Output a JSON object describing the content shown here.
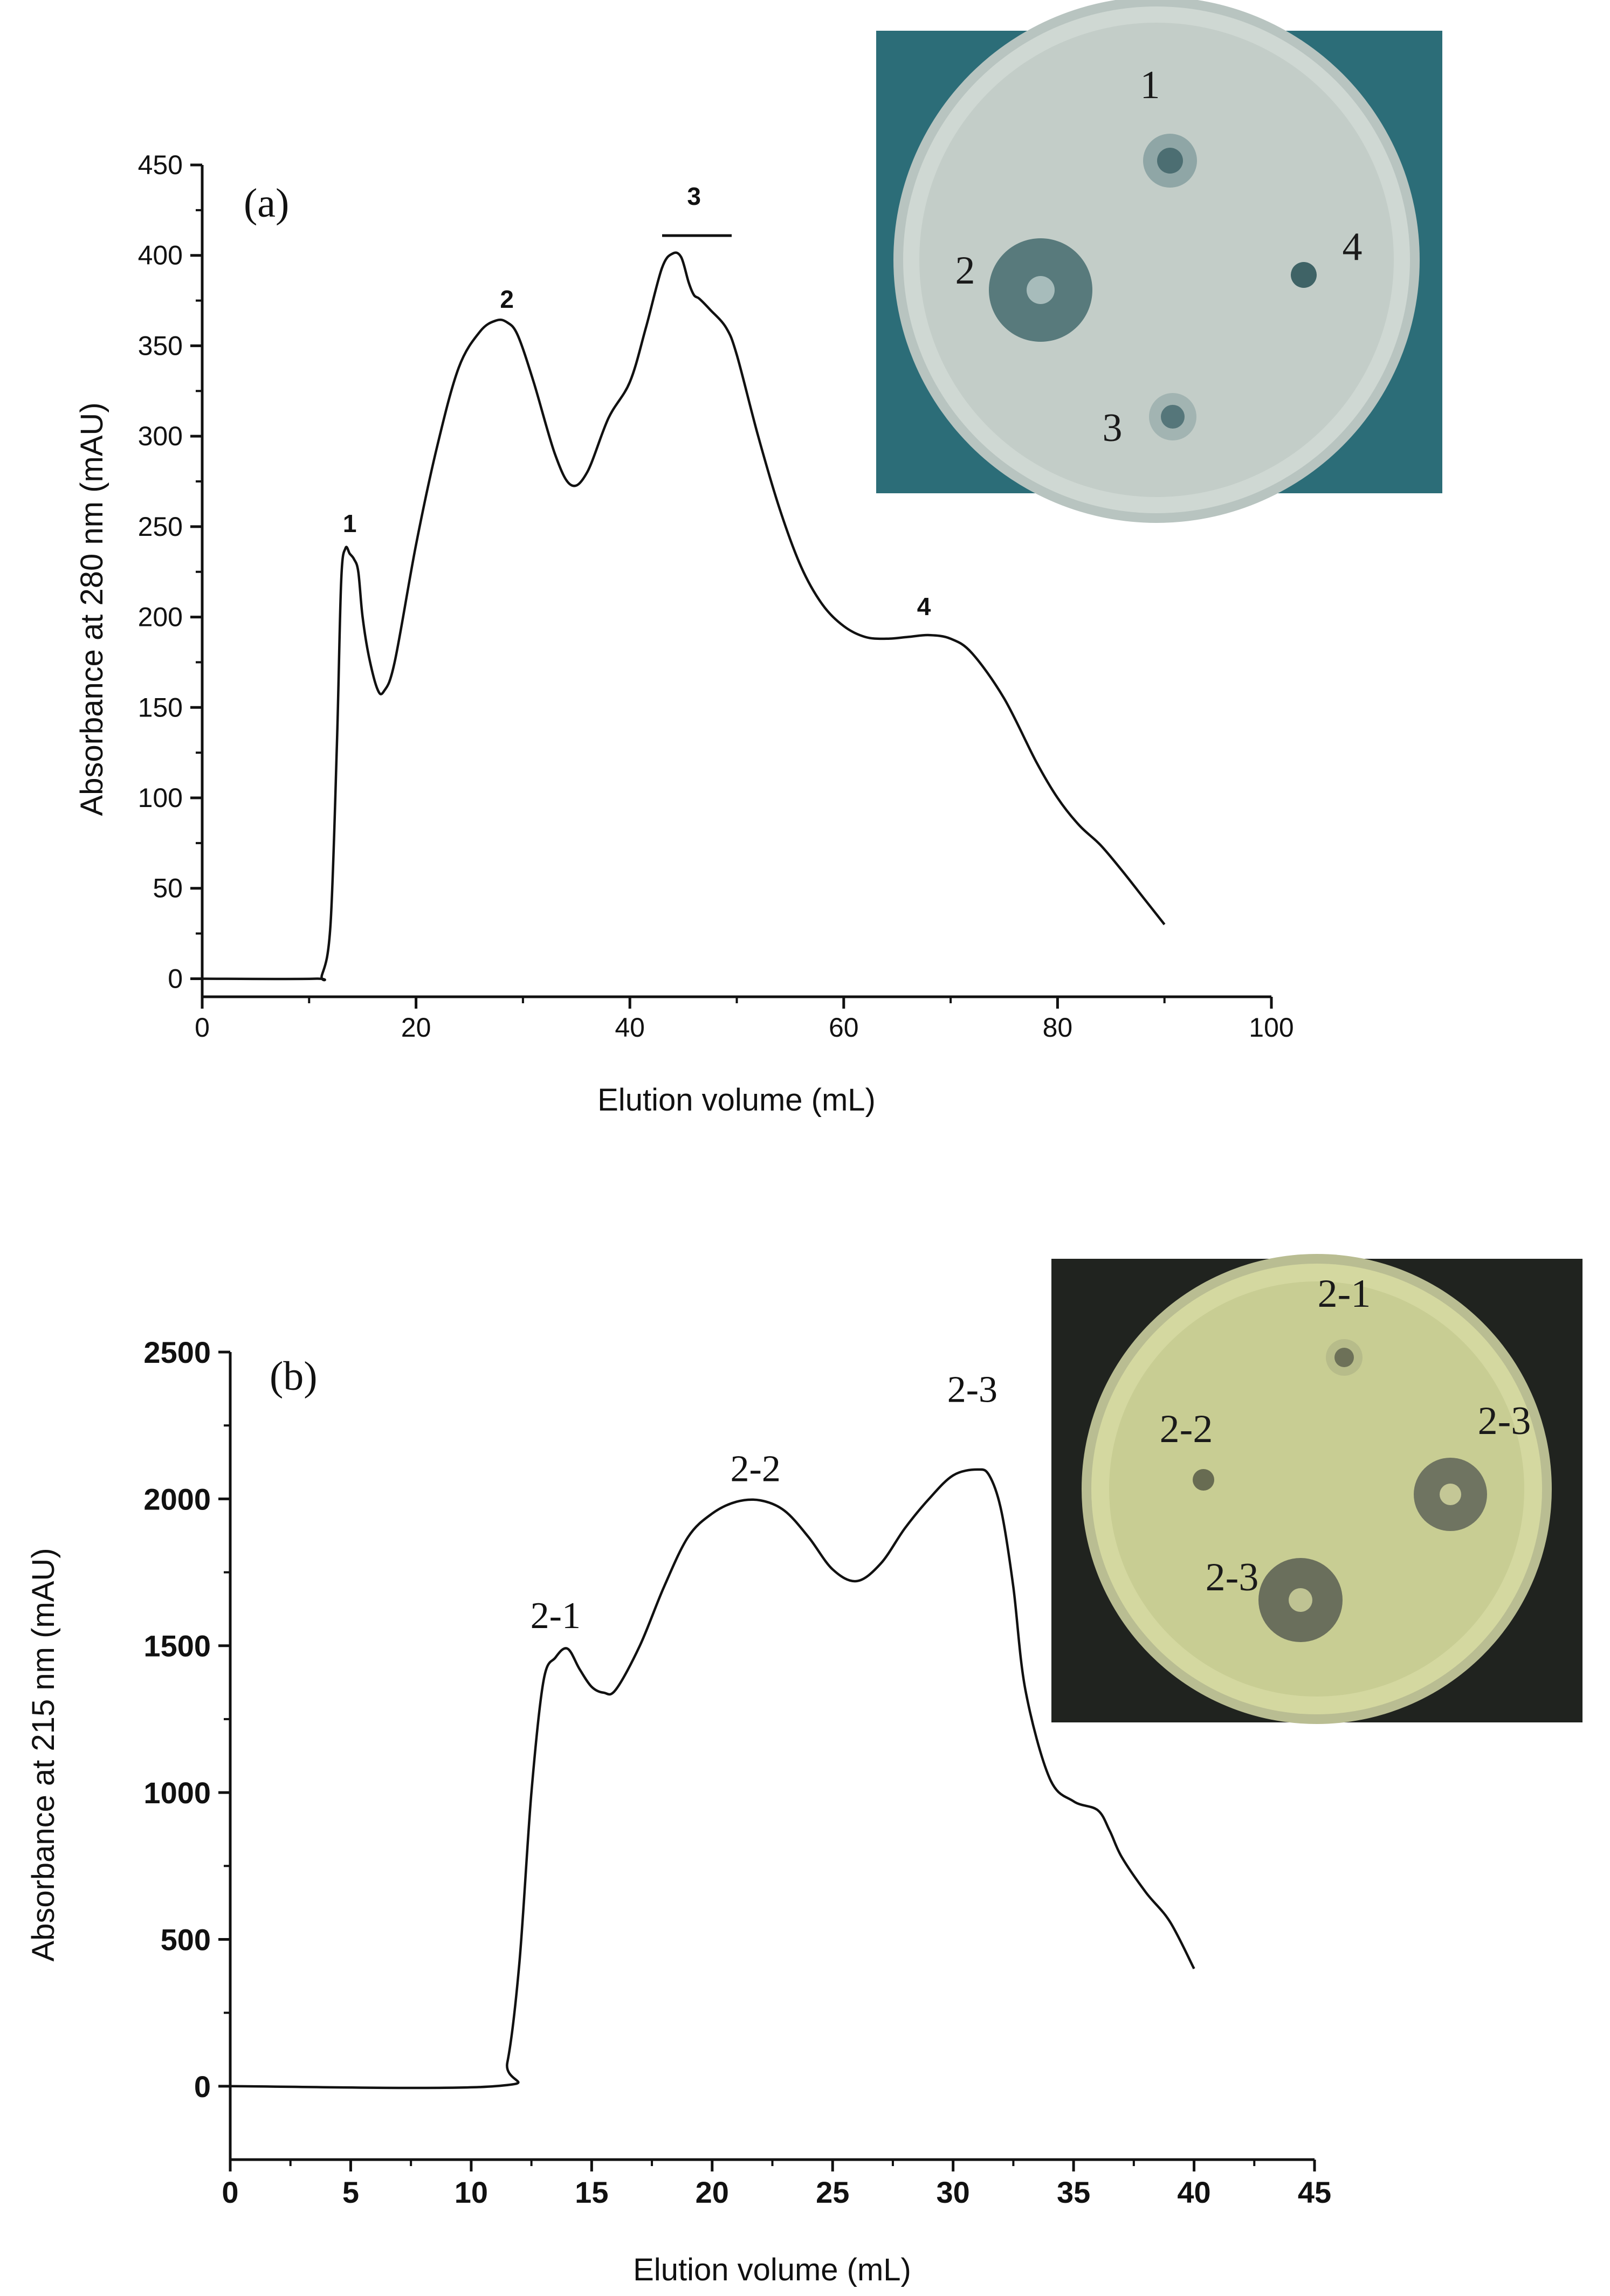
{
  "chart_data": [
    {
      "type": "line",
      "panel_label": "(a)",
      "xlabel": "Elution volume (mL)",
      "ylabel": "Absorbance at 280 nm (mAU)",
      "xlim": [
        0,
        100
      ],
      "ylim": [
        -10,
        450
      ],
      "xticks": [
        0,
        20,
        40,
        60,
        80,
        100
      ],
      "yticks": [
        0,
        50,
        100,
        150,
        200,
        250,
        300,
        350,
        400,
        450
      ],
      "grid": false,
      "series": [
        {
          "x": [
            0,
            10.5,
            11.2,
            12,
            12.6,
            13,
            13.4,
            13.8,
            14.2,
            14.6,
            15,
            15.6,
            16.4,
            17,
            18,
            20,
            22,
            24,
            26,
            27.5,
            28.5,
            29.5,
            31,
            33,
            34.5,
            36,
            38,
            40,
            41.5,
            43,
            44,
            44.8,
            45.5,
            46,
            46.5,
            47.5,
            49,
            50,
            52,
            54,
            56,
            58,
            60,
            62,
            64,
            66,
            68,
            70,
            72,
            75,
            78,
            80,
            82,
            84,
            86,
            88,
            90
          ],
          "y": [
            0,
            0,
            2,
            30,
            130,
            220,
            238,
            235,
            232,
            225,
            200,
            178,
            160,
            159,
            175,
            240,
            295,
            338,
            358,
            364,
            363,
            356,
            330,
            290,
            273,
            280,
            310,
            330,
            360,
            393,
            401,
            399,
            385,
            378,
            376,
            370,
            360,
            345,
            300,
            260,
            228,
            207,
            195,
            189,
            188,
            189,
            190,
            188,
            180,
            155,
            120,
            100,
            85,
            74,
            60,
            45,
            30
          ]
        }
      ],
      "annotations": [
        {
          "text": "1",
          "x": 13.8,
          "y": 247
        },
        {
          "text": "2",
          "x": 28.5,
          "y": 371
        },
        {
          "text": "3",
          "x": 46,
          "y": 428
        },
        {
          "text": "4",
          "x": 67.5,
          "y": 201
        }
      ]
    },
    {
      "type": "line",
      "panel_label": "(b)",
      "xlabel": "Elution volume (mL)",
      "ylabel": "Absorbance at 215 nm (mAU)",
      "xlim": [
        0,
        45
      ],
      "ylim": [
        -250,
        2500
      ],
      "xticks": [
        0,
        5,
        10,
        15,
        20,
        25,
        30,
        35,
        40,
        45
      ],
      "yticks": [
        0,
        500,
        1000,
        1500,
        2000,
        2500
      ],
      "grid": false,
      "series": [
        {
          "x": [
            0,
            11,
            11.5,
            12,
            12.5,
            13,
            13.5,
            14,
            14.5,
            15,
            15.5,
            16,
            17,
            18,
            19,
            20,
            21,
            22,
            23,
            24,
            25,
            26,
            27,
            28,
            29,
            30,
            31,
            31.5,
            32,
            32.5,
            33,
            34,
            35,
            36,
            36.5,
            37,
            38,
            39,
            40
          ],
          "y": [
            0,
            0,
            80,
            420,
            1000,
            1380,
            1460,
            1490,
            1420,
            1360,
            1340,
            1350,
            1500,
            1700,
            1870,
            1950,
            1990,
            1995,
            1960,
            1870,
            1760,
            1720,
            1780,
            1900,
            2000,
            2080,
            2100,
            2080,
            1960,
            1700,
            1350,
            1050,
            970,
            940,
            870,
            780,
            660,
            560,
            400
          ]
        }
      ],
      "annotations": [
        {
          "text": "2-1",
          "x": 13.5,
          "y": 1560
        },
        {
          "text": "2-2",
          "x": 21.8,
          "y": 2060
        },
        {
          "text": "2-3",
          "x": 30.8,
          "y": 2330
        }
      ]
    }
  ],
  "inset_a": {
    "labels": [
      "1",
      "2",
      "3",
      "4"
    ],
    "background": "#2c6d78",
    "agar": "#cfd8d3"
  },
  "inset_b": {
    "labels": [
      "2-1",
      "2-2",
      "2-3",
      "2-3"
    ],
    "background": "#20231f",
    "agar": "#d4d8a0"
  }
}
